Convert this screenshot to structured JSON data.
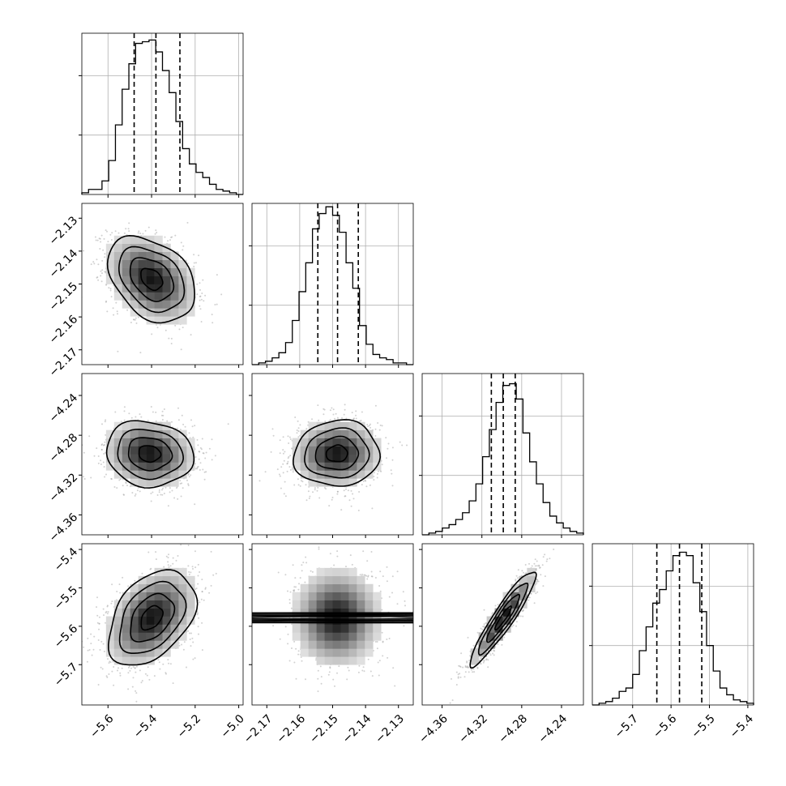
{
  "chart_data": {
    "type": "corner",
    "grid": true,
    "params": [
      {
        "range": [
          -5.72,
          -4.98
        ],
        "ticks": [
          -5.6,
          -5.4,
          -5.2,
          -5.0
        ],
        "tick_labels": [
          "−5.6",
          "−5.4",
          "−5.2",
          "−5.0"
        ],
        "quantiles": [
          -5.48,
          -5.38,
          -5.27
        ],
        "hist_max": 0.95,
        "hist": [
          0.01,
          0.03,
          0.03,
          0.08,
          0.2,
          0.41,
          0.62,
          0.77,
          0.89,
          0.9,
          0.91,
          0.84,
          0.73,
          0.6,
          0.43,
          0.27,
          0.18,
          0.13,
          0.1,
          0.06,
          0.03,
          0.02,
          0.01,
          0.0
        ]
      },
      {
        "range": [
          -2.1745,
          -2.1255
        ],
        "ticks": [
          -2.17,
          -2.16,
          -2.15,
          -2.14,
          -2.13
        ],
        "tick_labels": [
          "−2.17",
          "−2.16",
          "−2.15",
          "−2.14",
          "−2.13"
        ],
        "quantiles": [
          -2.1545,
          -2.1485,
          -2.1422
        ],
        "hist_max": 0.95,
        "hist": [
          0.0,
          0.01,
          0.02,
          0.04,
          0.07,
          0.13,
          0.26,
          0.43,
          0.6,
          0.8,
          0.89,
          0.93,
          0.88,
          0.78,
          0.6,
          0.45,
          0.23,
          0.12,
          0.06,
          0.04,
          0.03,
          0.01,
          0.01,
          0.0
        ]
      },
      {
        "range": [
          -4.38,
          -4.218
        ],
        "ticks": [
          -4.36,
          -4.32,
          -4.28,
          -4.24
        ],
        "tick_labels": [
          "−4.36",
          "−4.32",
          "−4.28",
          "−4.24"
        ],
        "quantiles": [
          -4.3105,
          -4.2985,
          -4.2865
        ],
        "hist_max": 0.95,
        "hist": [
          0.0,
          0.01,
          0.02,
          0.04,
          0.06,
          0.09,
          0.13,
          0.2,
          0.3,
          0.46,
          0.62,
          0.78,
          0.88,
          0.89,
          0.8,
          0.6,
          0.43,
          0.3,
          0.19,
          0.11,
          0.07,
          0.04,
          0.02,
          0.01
        ]
      },
      {
        "range": [
          -5.805,
          -5.385
        ],
        "ticks": [
          -5.7,
          -5.6,
          -5.5,
          -5.4
        ],
        "tick_labels": [
          "−5.7",
          "−5.6",
          "−5.5",
          "−5.4"
        ],
        "quantiles": [
          -5.637,
          -5.578,
          -5.52
        ],
        "hist_max": 0.95,
        "hist": [
          0.0,
          0.01,
          0.02,
          0.04,
          0.08,
          0.1,
          0.18,
          0.32,
          0.46,
          0.6,
          0.68,
          0.79,
          0.88,
          0.9,
          0.88,
          0.72,
          0.55,
          0.35,
          0.2,
          0.1,
          0.06,
          0.03,
          0.02,
          0.01
        ]
      }
    ],
    "pairs": [
      {
        "row": 1,
        "col": 0,
        "mean": [
          -5.4,
          -2.1485
        ],
        "sd": [
          0.1,
          0.0065
        ],
        "rho": -0.35
      },
      {
        "row": 2,
        "col": 0,
        "mean": [
          -5.41,
          -4.2985
        ],
        "sd": [
          0.1,
          0.0165
        ],
        "rho": -0.1
      },
      {
        "row": 2,
        "col": 1,
        "mean": [
          -2.1487,
          -4.2985
        ],
        "sd": [
          0.0065,
          0.0165
        ],
        "rho": 0.05
      },
      {
        "row": 3,
        "col": 0,
        "mean": [
          -5.4,
          -5.578
        ],
        "sd": [
          0.1,
          0.062
        ],
        "rho": 0.4
      },
      {
        "row": 3,
        "col": 1,
        "mean": [
          -2.1487,
          -5.578
        ],
        "sd": [
          0.0065,
          0.062
        ],
        "rho": 0.0
      },
      {
        "row": 3,
        "col": 2,
        "mean": [
          -4.2985,
          -5.578
        ],
        "sd": [
          0.0165,
          0.062
        ],
        "rho": 0.93
      }
    ]
  }
}
